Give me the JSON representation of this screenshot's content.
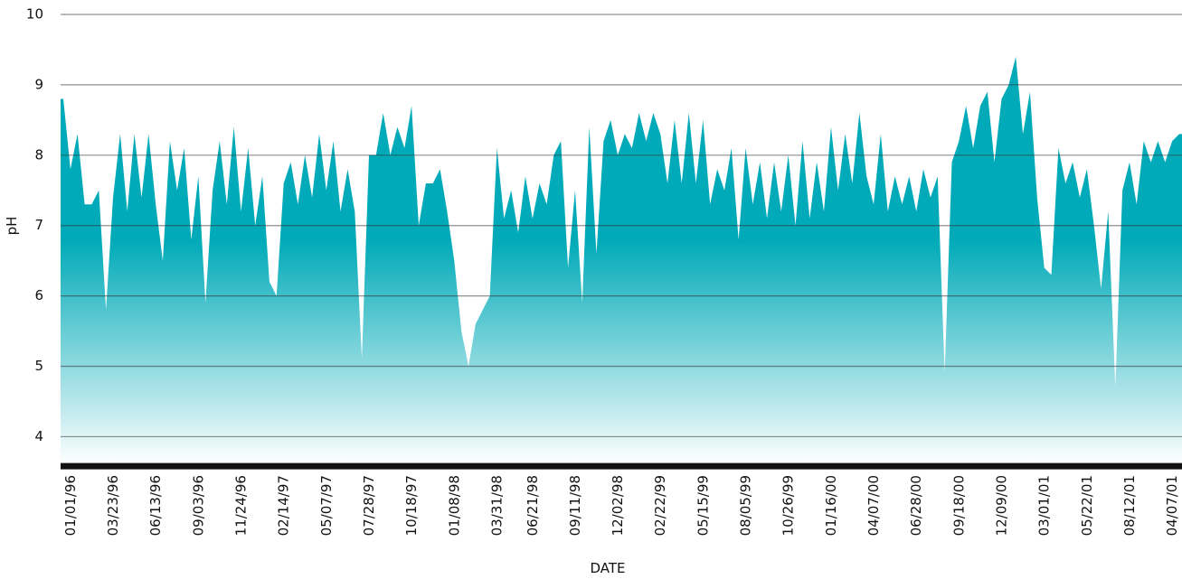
{
  "chart_data": {
    "type": "area",
    "xlabel": "DATE",
    "ylabel": "pH",
    "color": "#00aab8",
    "grid": true,
    "ylim": [
      3.6,
      10
    ],
    "yticks": [
      4,
      5,
      6,
      7,
      8,
      9,
      10
    ],
    "categories": [
      null,
      "01/01/96",
      null,
      null,
      null,
      null,
      null,
      "03/23/96",
      null,
      null,
      null,
      null,
      null,
      "06/13/96",
      null,
      null,
      null,
      null,
      null,
      "09/03/96",
      null,
      null,
      null,
      null,
      null,
      "11/24/96",
      null,
      null,
      null,
      null,
      null,
      "02/14/97",
      null,
      null,
      null,
      null,
      null,
      "05/07/97",
      null,
      null,
      null,
      null,
      null,
      "07/28/97",
      null,
      null,
      null,
      null,
      null,
      "10/18/97",
      null,
      null,
      null,
      null,
      null,
      "01/08/98",
      null,
      null,
      null,
      null,
      null,
      "03/31/98",
      null,
      null,
      null,
      null,
      "06/21/98",
      null,
      null,
      null,
      null,
      null,
      "09/11/98",
      null,
      null,
      null,
      null,
      null,
      "12/02/98",
      null,
      null,
      null,
      null,
      null,
      "02/22/99",
      null,
      null,
      null,
      null,
      null,
      "05/15/99",
      null,
      null,
      null,
      null,
      null,
      "08/05/99",
      null,
      null,
      null,
      null,
      null,
      "10/26/99",
      null,
      null,
      null,
      null,
      null,
      "01/16/00",
      null,
      null,
      null,
      null,
      null,
      "04/07/00",
      null,
      null,
      null,
      null,
      null,
      "06/28/00",
      null,
      null,
      null,
      null,
      null,
      "09/18/00",
      null,
      null,
      null,
      null,
      null,
      "12/09/00",
      null,
      null,
      null,
      null,
      null,
      "03/01/01",
      null,
      null,
      null,
      null,
      null,
      "05/22/01",
      null,
      null,
      null,
      null,
      null,
      "08/12/01",
      null,
      null,
      null,
      null,
      null,
      "04/07/01",
      null
    ],
    "values": [
      8.8,
      7.8,
      8.3,
      7.3,
      7.3,
      7.5,
      5.8,
      7.4,
      8.3,
      7.2,
      8.3,
      7.4,
      8.3,
      7.3,
      6.5,
      8.2,
      7.5,
      8.1,
      6.8,
      7.7,
      5.9,
      7.5,
      8.2,
      7.3,
      8.4,
      7.2,
      8.1,
      7.0,
      7.7,
      6.2,
      6.0,
      7.6,
      7.9,
      7.3,
      8.0,
      7.4,
      8.3,
      7.5,
      8.2,
      7.2,
      7.8,
      7.2,
      5.1,
      8.0,
      8.0,
      8.6,
      8.0,
      8.4,
      8.1,
      8.7,
      7.0,
      7.6,
      7.6,
      7.8,
      7.2,
      6.5,
      5.5,
      5.0,
      5.6,
      5.8,
      6.0,
      8.1,
      7.1,
      7.5,
      6.9,
      7.7,
      7.1,
      7.6,
      7.3,
      8.0,
      8.2,
      6.4,
      7.5,
      5.9,
      8.4,
      6.6,
      8.2,
      8.5,
      8.0,
      8.3,
      8.1,
      8.6,
      8.2,
      8.6,
      8.3,
      7.6,
      8.5,
      7.6,
      8.6,
      7.6,
      8.5,
      7.3,
      7.8,
      7.5,
      8.1,
      6.8,
      8.1,
      7.3,
      7.9,
      7.1,
      7.9,
      7.2,
      8.0,
      7.0,
      8.2,
      7.1,
      7.9,
      7.2,
      8.4,
      7.5,
      8.3,
      7.6,
      8.6,
      7.7,
      7.3,
      8.3,
      7.2,
      7.7,
      7.3,
      7.7,
      7.2,
      7.8,
      7.4,
      7.7,
      4.9,
      7.9,
      8.2,
      8.7,
      8.1,
      8.7,
      8.9,
      7.9,
      8.8,
      9.0,
      9.4,
      8.3,
      8.9,
      7.4,
      6.4,
      6.3,
      8.1,
      7.6,
      7.9,
      7.4,
      7.8,
      7.0,
      6.1,
      7.2,
      4.7,
      7.5,
      7.9,
      7.3,
      8.2,
      7.9,
      8.2,
      7.9,
      8.2,
      8.3
    ]
  }
}
